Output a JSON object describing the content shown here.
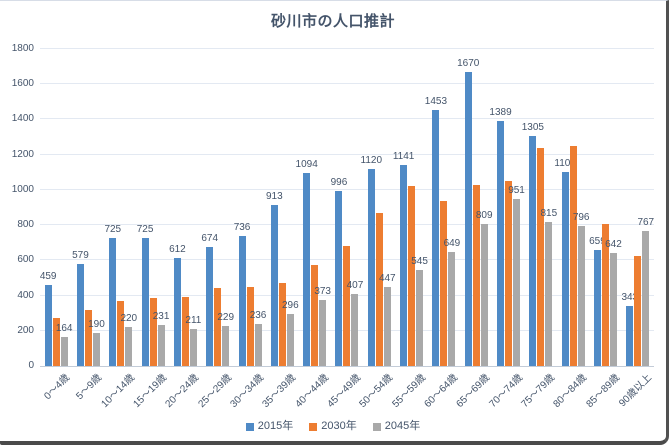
{
  "frame": {
    "background": "#ffffff",
    "border_dark": "#4a4a4a",
    "border_top": "#d7dde7"
  },
  "chart_data": {
    "type": "bar",
    "title": "砂川市の人口推計",
    "categories": [
      "0～4歳",
      "5～9歳",
      "10～14歳",
      "15～19歳",
      "20～24歳",
      "25～29歳",
      "30～34歳",
      "35～39歳",
      "40～44歳",
      "45～49歳",
      "50～54歳",
      "55～59歳",
      "60～64歳",
      "65～69歳",
      "70～74歳",
      "75～79歳",
      "80～84歳",
      "85～89歳",
      "90歳以上"
    ],
    "series": [
      {
        "name": "2015年",
        "color": "#4f8ac6",
        "data_labels_visible": true,
        "values": [
          459,
          579,
          725,
          725,
          612,
          674,
          736,
          913,
          1094,
          996,
          1120,
          1141,
          1453,
          1670,
          1389,
          1305,
          1101,
          659,
          343
        ]
      },
      {
        "name": "2030年",
        "color": "#ed7d31",
        "data_labels_visible": false,
        "values": [
          274,
          316,
          369,
          386,
          391,
          441,
          448,
          474,
          575,
          679,
          867,
          1021,
          937,
          1026,
          1051,
          1236,
          1249,
          806,
          624
        ]
      },
      {
        "name": "2045年",
        "color": "#a9a9a9",
        "data_labels_visible": true,
        "values": [
          164,
          190,
          220,
          231,
          211,
          229,
          236,
          296,
          373,
          407,
          447,
          545,
          649,
          809,
          951,
          815,
          796,
          642,
          767
        ]
      }
    ],
    "y_axis": {
      "min": 0,
      "max": 1800,
      "tick_step": 200,
      "ticks": [
        0,
        200,
        400,
        600,
        800,
        1000,
        1200,
        1400,
        1600,
        1800
      ]
    },
    "xlabel": "",
    "ylabel": "",
    "grid": true,
    "legend_position": "bottom",
    "colors": {
      "text": "#44546a",
      "gridline": "#e3e9f2",
      "axis_line": "#c3ccd8"
    }
  }
}
